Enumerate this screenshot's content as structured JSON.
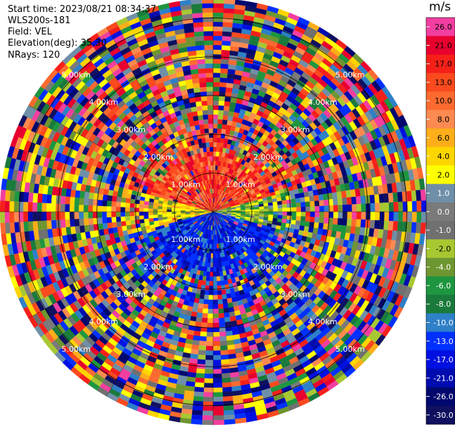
{
  "header": {
    "start_time": "Start time: 2023/08/21 08:34:37",
    "instrument": "WLS200s-181",
    "field": "Field: VEL",
    "elevation": "Elevation(deg): 35.30",
    "nrays": "NRays: 120"
  },
  "colorbar": {
    "unit": "m/s",
    "levels": [
      {
        "label": "26.0",
        "color": "#f23ea0"
      },
      {
        "label": "21.0",
        "color": "#e8002e"
      },
      {
        "label": "17.0",
        "color": "#f5201a"
      },
      {
        "label": "13.0",
        "color": "#fa4a1e"
      },
      {
        "label": "10.0",
        "color": "#fc6a30"
      },
      {
        "label": "8.0",
        "color": "#fd8a50"
      },
      {
        "label": "6.0",
        "color": "#fdae18"
      },
      {
        "label": "4.0",
        "color": "#fdd500"
      },
      {
        "label": "2.0",
        "color": "#ffff00"
      },
      {
        "label": "1.0",
        "color": "#6f8fa8"
      },
      {
        "label": "0.0",
        "color": "#7a7a7a"
      },
      {
        "label": "-1.0",
        "color": "#707070"
      },
      {
        "label": "-2.0",
        "color": "#a8c832"
      },
      {
        "label": "-4.0",
        "color": "#6e9630"
      },
      {
        "label": "-6.0",
        "color": "#1e9640"
      },
      {
        "label": "-8.0",
        "color": "#1a7a3c"
      },
      {
        "label": "-10.0",
        "color": "#2e80c8"
      },
      {
        "label": "-13.0",
        "color": "#0030ff"
      },
      {
        "label": "-17.0",
        "color": "#0010e0"
      },
      {
        "label": "-21.0",
        "color": "#000cb0"
      },
      {
        "label": "-26.0",
        "color": "#00086e"
      },
      {
        "label": "-30.0",
        "color": "#101060"
      }
    ]
  },
  "chart_data": {
    "type": "heatmap",
    "subtype": "polar-ppi",
    "field": "VEL",
    "units": "m/s",
    "elevation_deg": 35.3,
    "n_rays": 120,
    "range_ring_labels_km": [
      "1.00km",
      "2.00km",
      "3.00km",
      "4.00km",
      "5.00km"
    ],
    "range_rings_km": [
      1,
      2,
      3,
      4,
      5
    ],
    "max_range_km": 5.5,
    "pattern": "near-range coherent velocities (positive/red to the north, negative/blue to the south); far range dominated by noise across all colors",
    "colorbar_range": [
      -30,
      26
    ],
    "grid": true
  }
}
